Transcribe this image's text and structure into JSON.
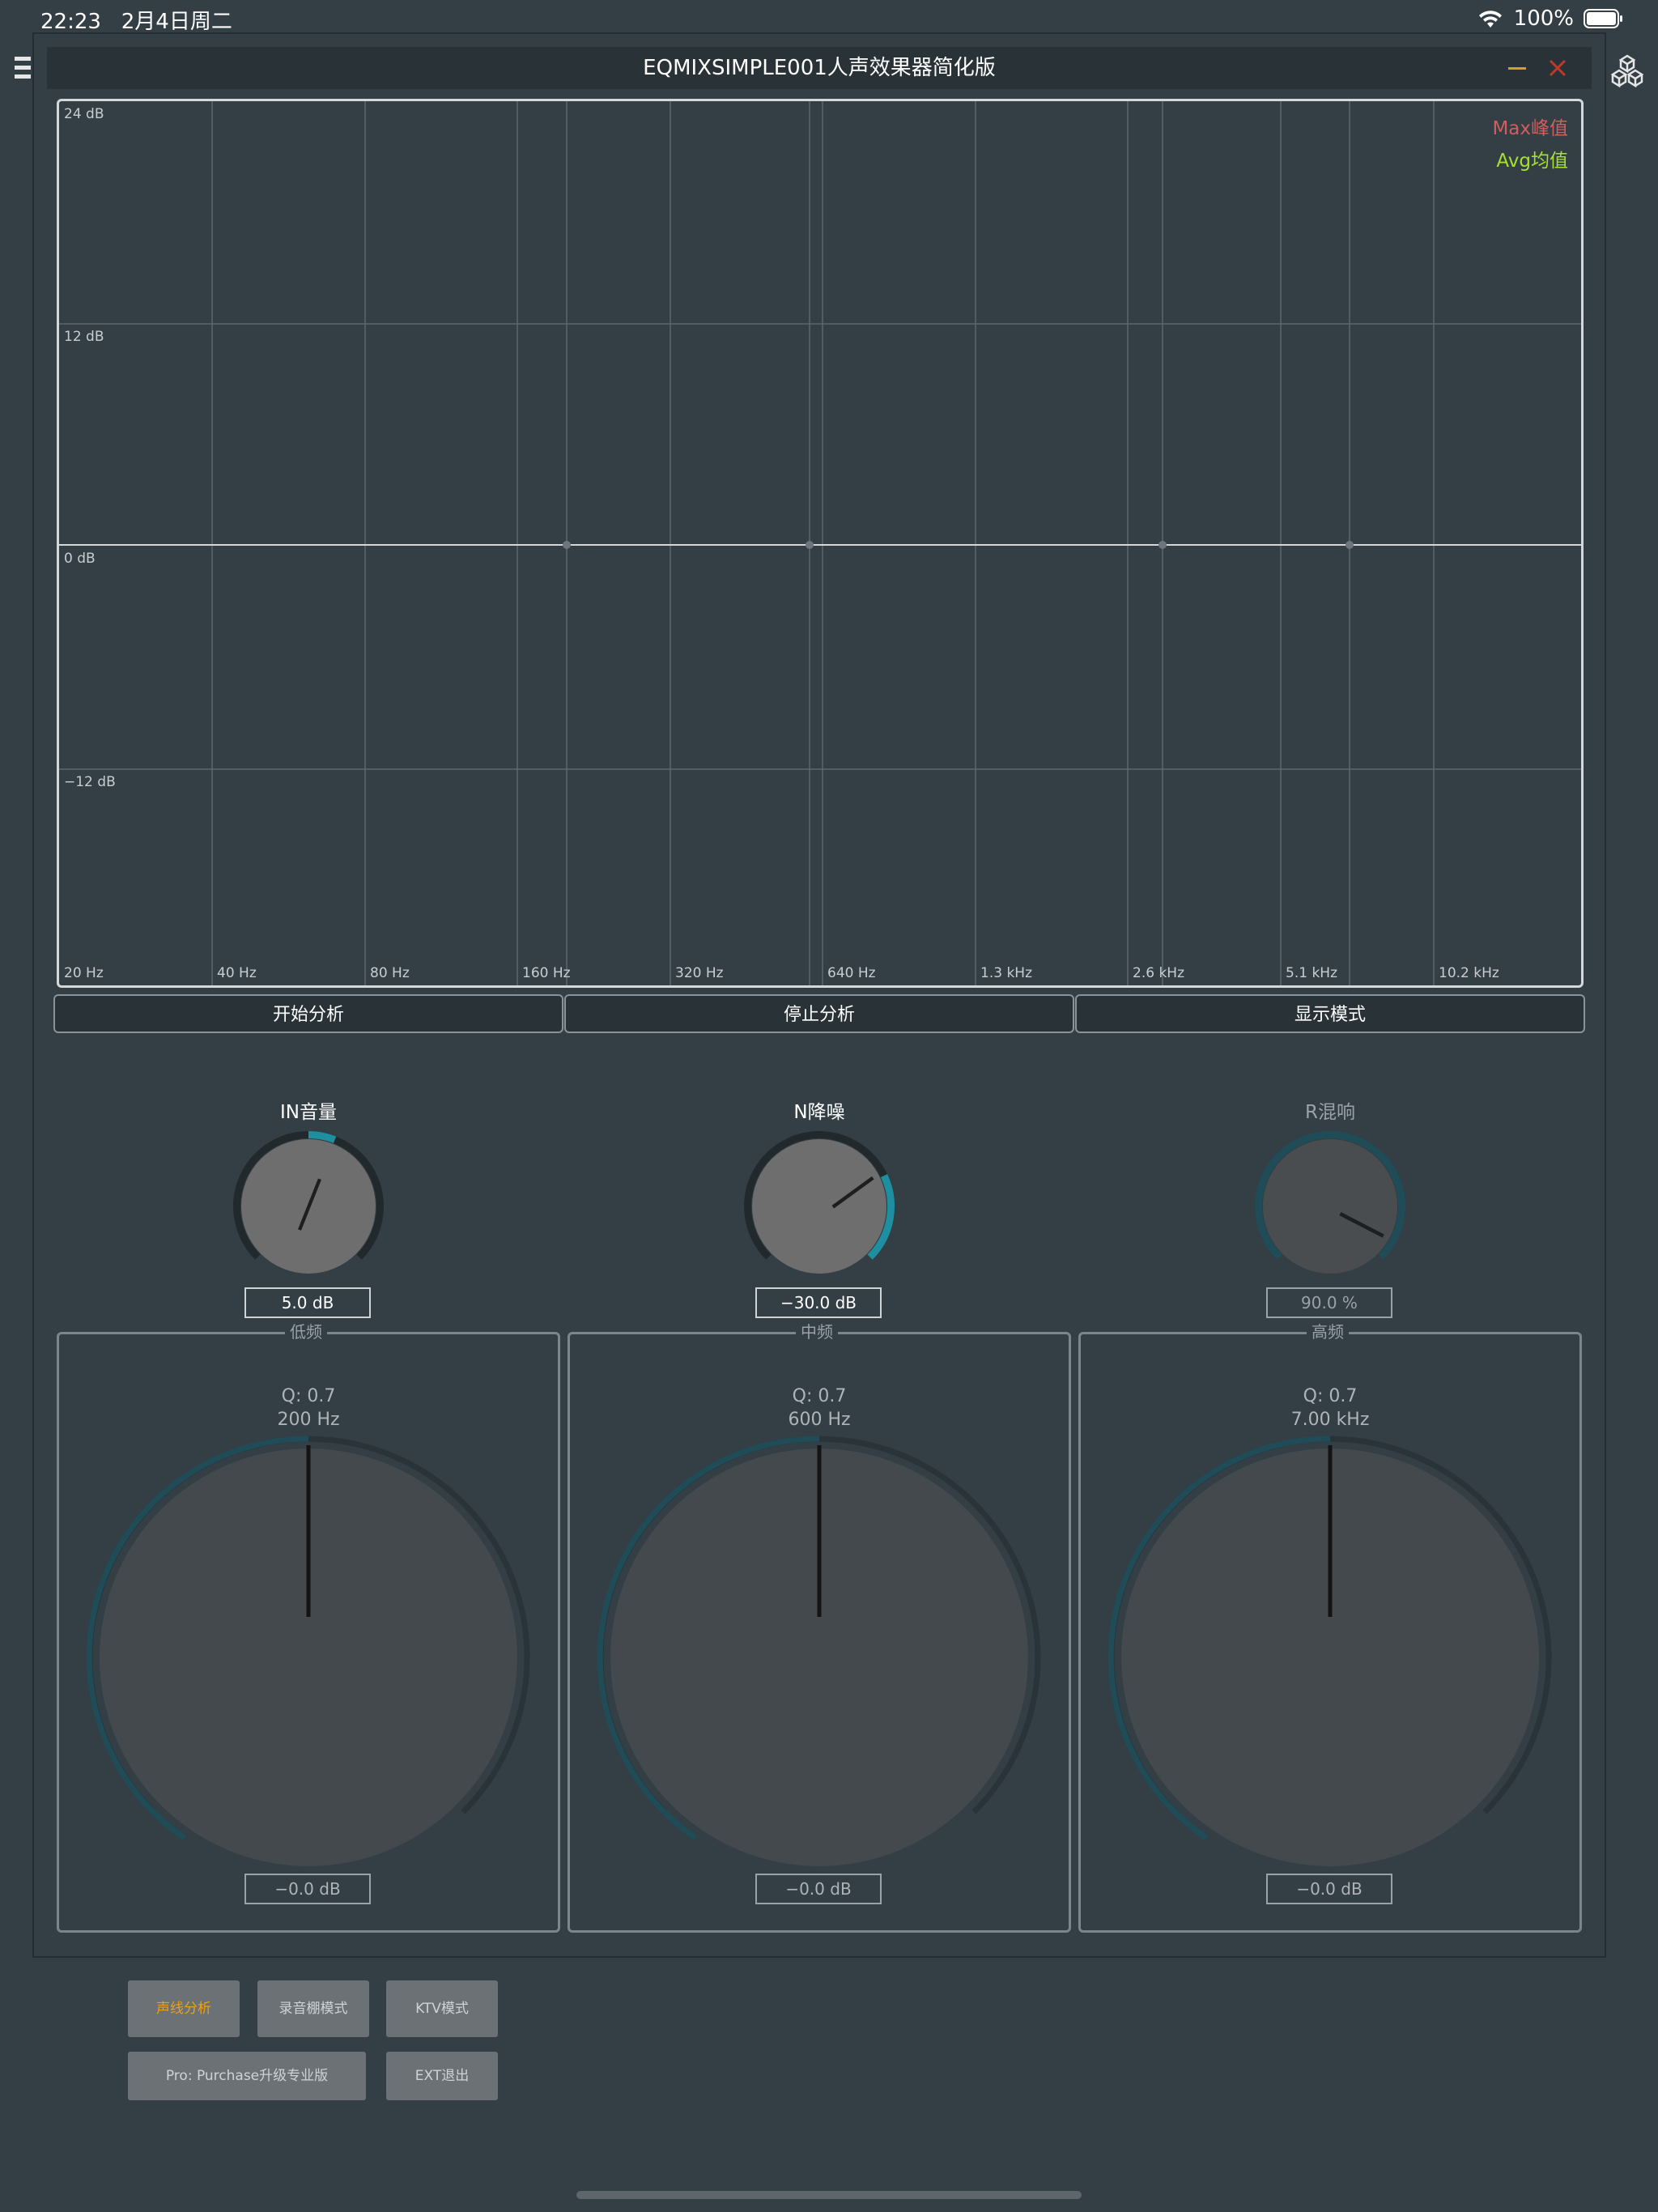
{
  "status_bar": {
    "time": "22:23",
    "date": "2月4日周二",
    "battery": "100%",
    "wifi_icon": "wifi-icon",
    "battery_icon": "battery-icon"
  },
  "window": {
    "title": "EQMIXSIMPLE001人声效果器简化版",
    "minimize_icon": "minimize-icon",
    "close_icon": "close-icon",
    "accent_color": "#1e8fa0"
  },
  "analyzer": {
    "db_labels": [
      "24 dB",
      "12 dB",
      "0 dB",
      "−12 dB"
    ],
    "hz_labels": [
      "20 Hz",
      "40 Hz",
      "80 Hz",
      "160 Hz",
      "320 Hz",
      "640 Hz",
      "1.3 kHz",
      "2.6 kHz",
      "5.1 kHz",
      "10.2 kHz"
    ],
    "legend": {
      "max": "Max峰值",
      "avg": "Avg均值",
      "max_color": "#d25d5d",
      "avg_color": "#a7e12f"
    }
  },
  "analysis_buttons": {
    "start": "开始分析",
    "stop": "停止分析",
    "display_mode": "显示模式"
  },
  "knobs": {
    "input": {
      "label": "IN音量",
      "value": "5.0 dB"
    },
    "noise": {
      "label": "N降噪",
      "value": "−30.0 dB"
    },
    "reverb": {
      "label": "R混响",
      "value": "90.0 %"
    }
  },
  "eq": {
    "low": {
      "title": "低频",
      "q": "Q: 0.7",
      "freq": "200 Hz",
      "gain": "−0.0 dB"
    },
    "mid": {
      "title": "中频",
      "q": "Q: 0.7",
      "freq": "600 Hz",
      "gain": "−0.0 dB"
    },
    "high": {
      "title": "高频",
      "q": "Q: 0.7",
      "freq": "7.00 kHz",
      "gain": "−0.0 dB"
    }
  },
  "menu": {
    "spectrum": "声线分析",
    "studio": "录音棚模式",
    "ktv": "KTV模式",
    "purchase": "Pro: Purchase升级专业版",
    "exit": "EXT退出",
    "active_color": "#e8a21a"
  }
}
